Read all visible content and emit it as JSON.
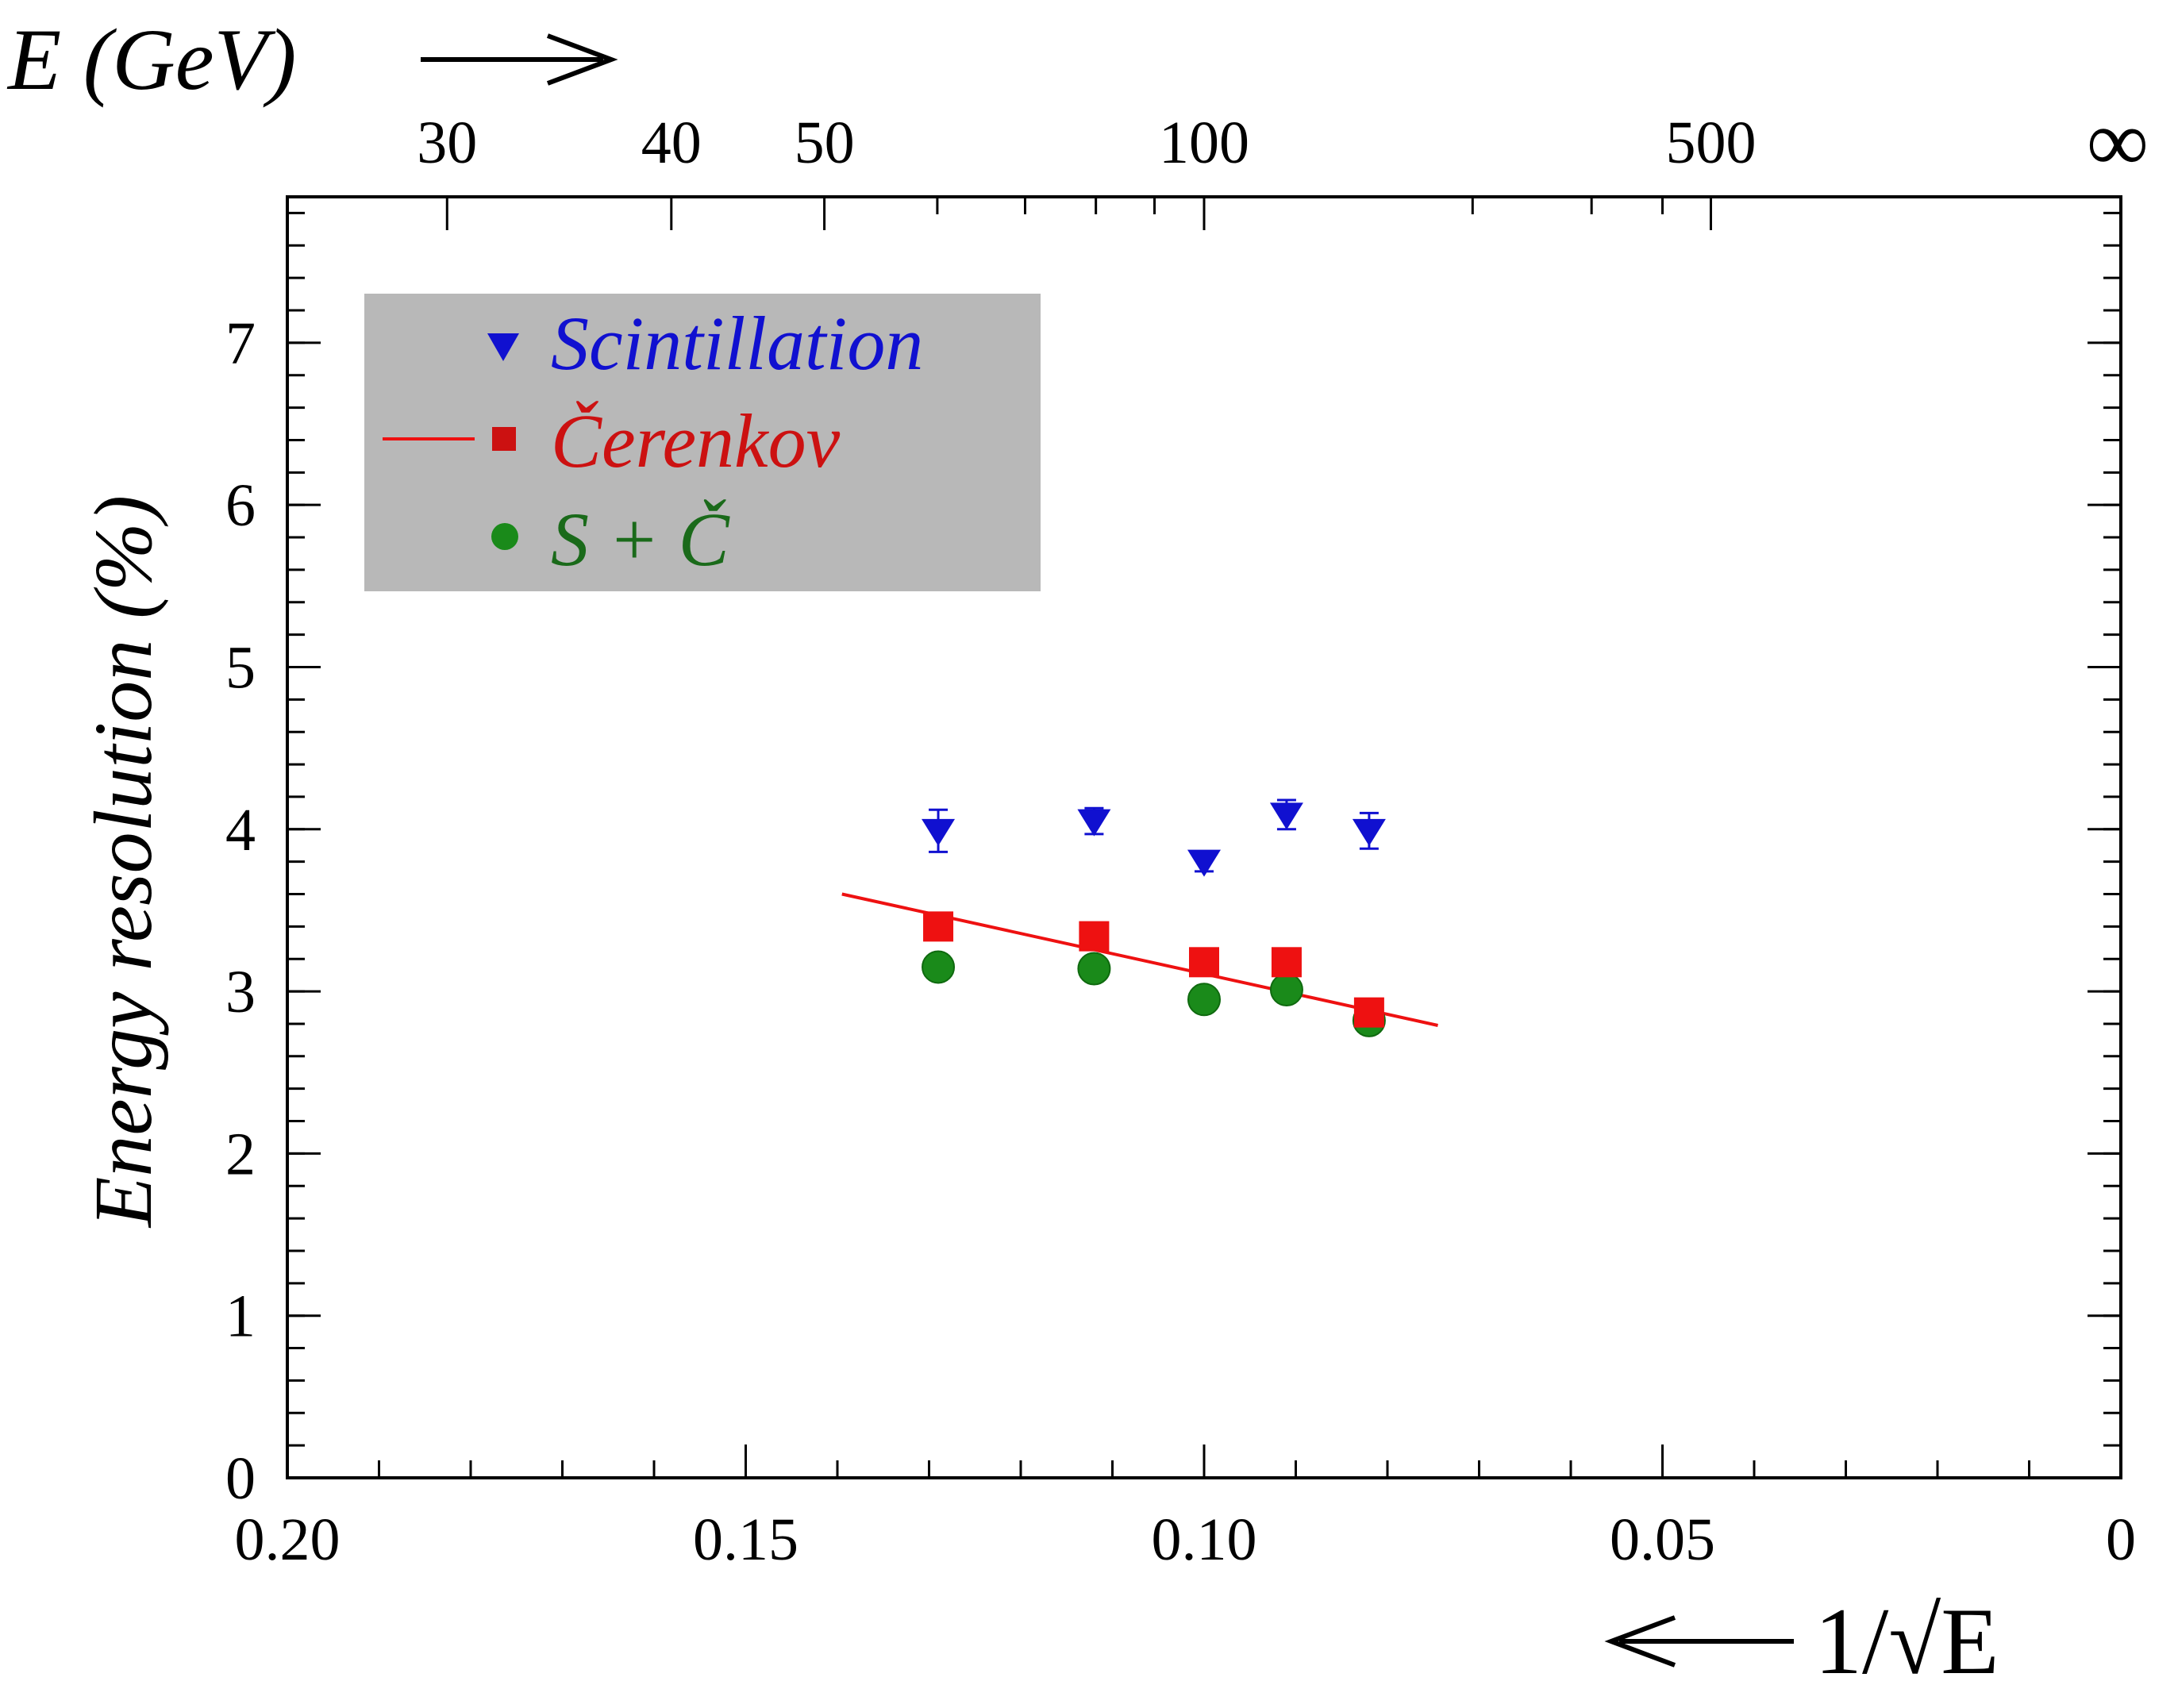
{
  "chart_data": {
    "type": "scatter",
    "title": "",
    "ylabel": "Energy resolution (%)",
    "xlabel": "1/√E",
    "x_axis_arrow": "left",
    "top_axis_label": "E (GeV)",
    "top_axis_arrow": "right",
    "xlim": [
      0.2,
      0
    ],
    "ylim": [
      0,
      7.9
    ],
    "x_reversed": true,
    "x_ticks": [
      {
        "value": 0.2,
        "label": "0.20"
      },
      {
        "value": 0.15,
        "label": "0.15"
      },
      {
        "value": 0.1,
        "label": "0.10"
      },
      {
        "value": 0.05,
        "label": "0.05"
      },
      {
        "value": 0,
        "label": "0"
      }
    ],
    "x_minor_step": 0.01,
    "y_ticks": [
      0,
      1,
      2,
      3,
      4,
      5,
      6,
      7
    ],
    "y_minor_step": 0.2,
    "top_ticks_major": [
      {
        "energy": 30,
        "label": "30"
      },
      {
        "energy": 40,
        "label": "40"
      },
      {
        "energy": 50,
        "label": "50"
      },
      {
        "energy": 100,
        "label": "100"
      },
      {
        "energy": 500,
        "label": "500"
      }
    ],
    "top_ticks_minor": [
      60,
      70,
      80,
      90,
      200,
      300,
      400
    ],
    "top_infinity_label": "∞",
    "grid": false,
    "legend_position": "top-left",
    "series": [
      {
        "name": "Scintillation",
        "marker": "triangle-down",
        "color": "#1010d0",
        "x": [
          0.129,
          0.112,
          0.1,
          0.091,
          0.082
        ],
        "y": [
          3.99,
          4.05,
          3.8,
          4.09,
          3.99
        ],
        "yerr": [
          0.13,
          0.08,
          0.06,
          0.09,
          0.11
        ]
      },
      {
        "name": "Čerenkov",
        "marker": "square",
        "color": "#ee1111",
        "x": [
          0.129,
          0.112,
          0.1,
          0.091,
          0.082
        ],
        "y": [
          3.4,
          3.34,
          3.18,
          3.18,
          2.87
        ]
      },
      {
        "name": "S + Č",
        "marker": "circle",
        "color": "#1a8a1a",
        "x": [
          0.129,
          0.112,
          0.1,
          0.091,
          0.082
        ],
        "y": [
          3.15,
          3.14,
          2.95,
          3.01,
          2.82
        ]
      }
    ],
    "fit_line": {
      "series": "Čerenkov",
      "color": "#ee1111",
      "x": [
        0.1395,
        0.0745
      ],
      "y": [
        3.6,
        2.79
      ]
    }
  }
}
